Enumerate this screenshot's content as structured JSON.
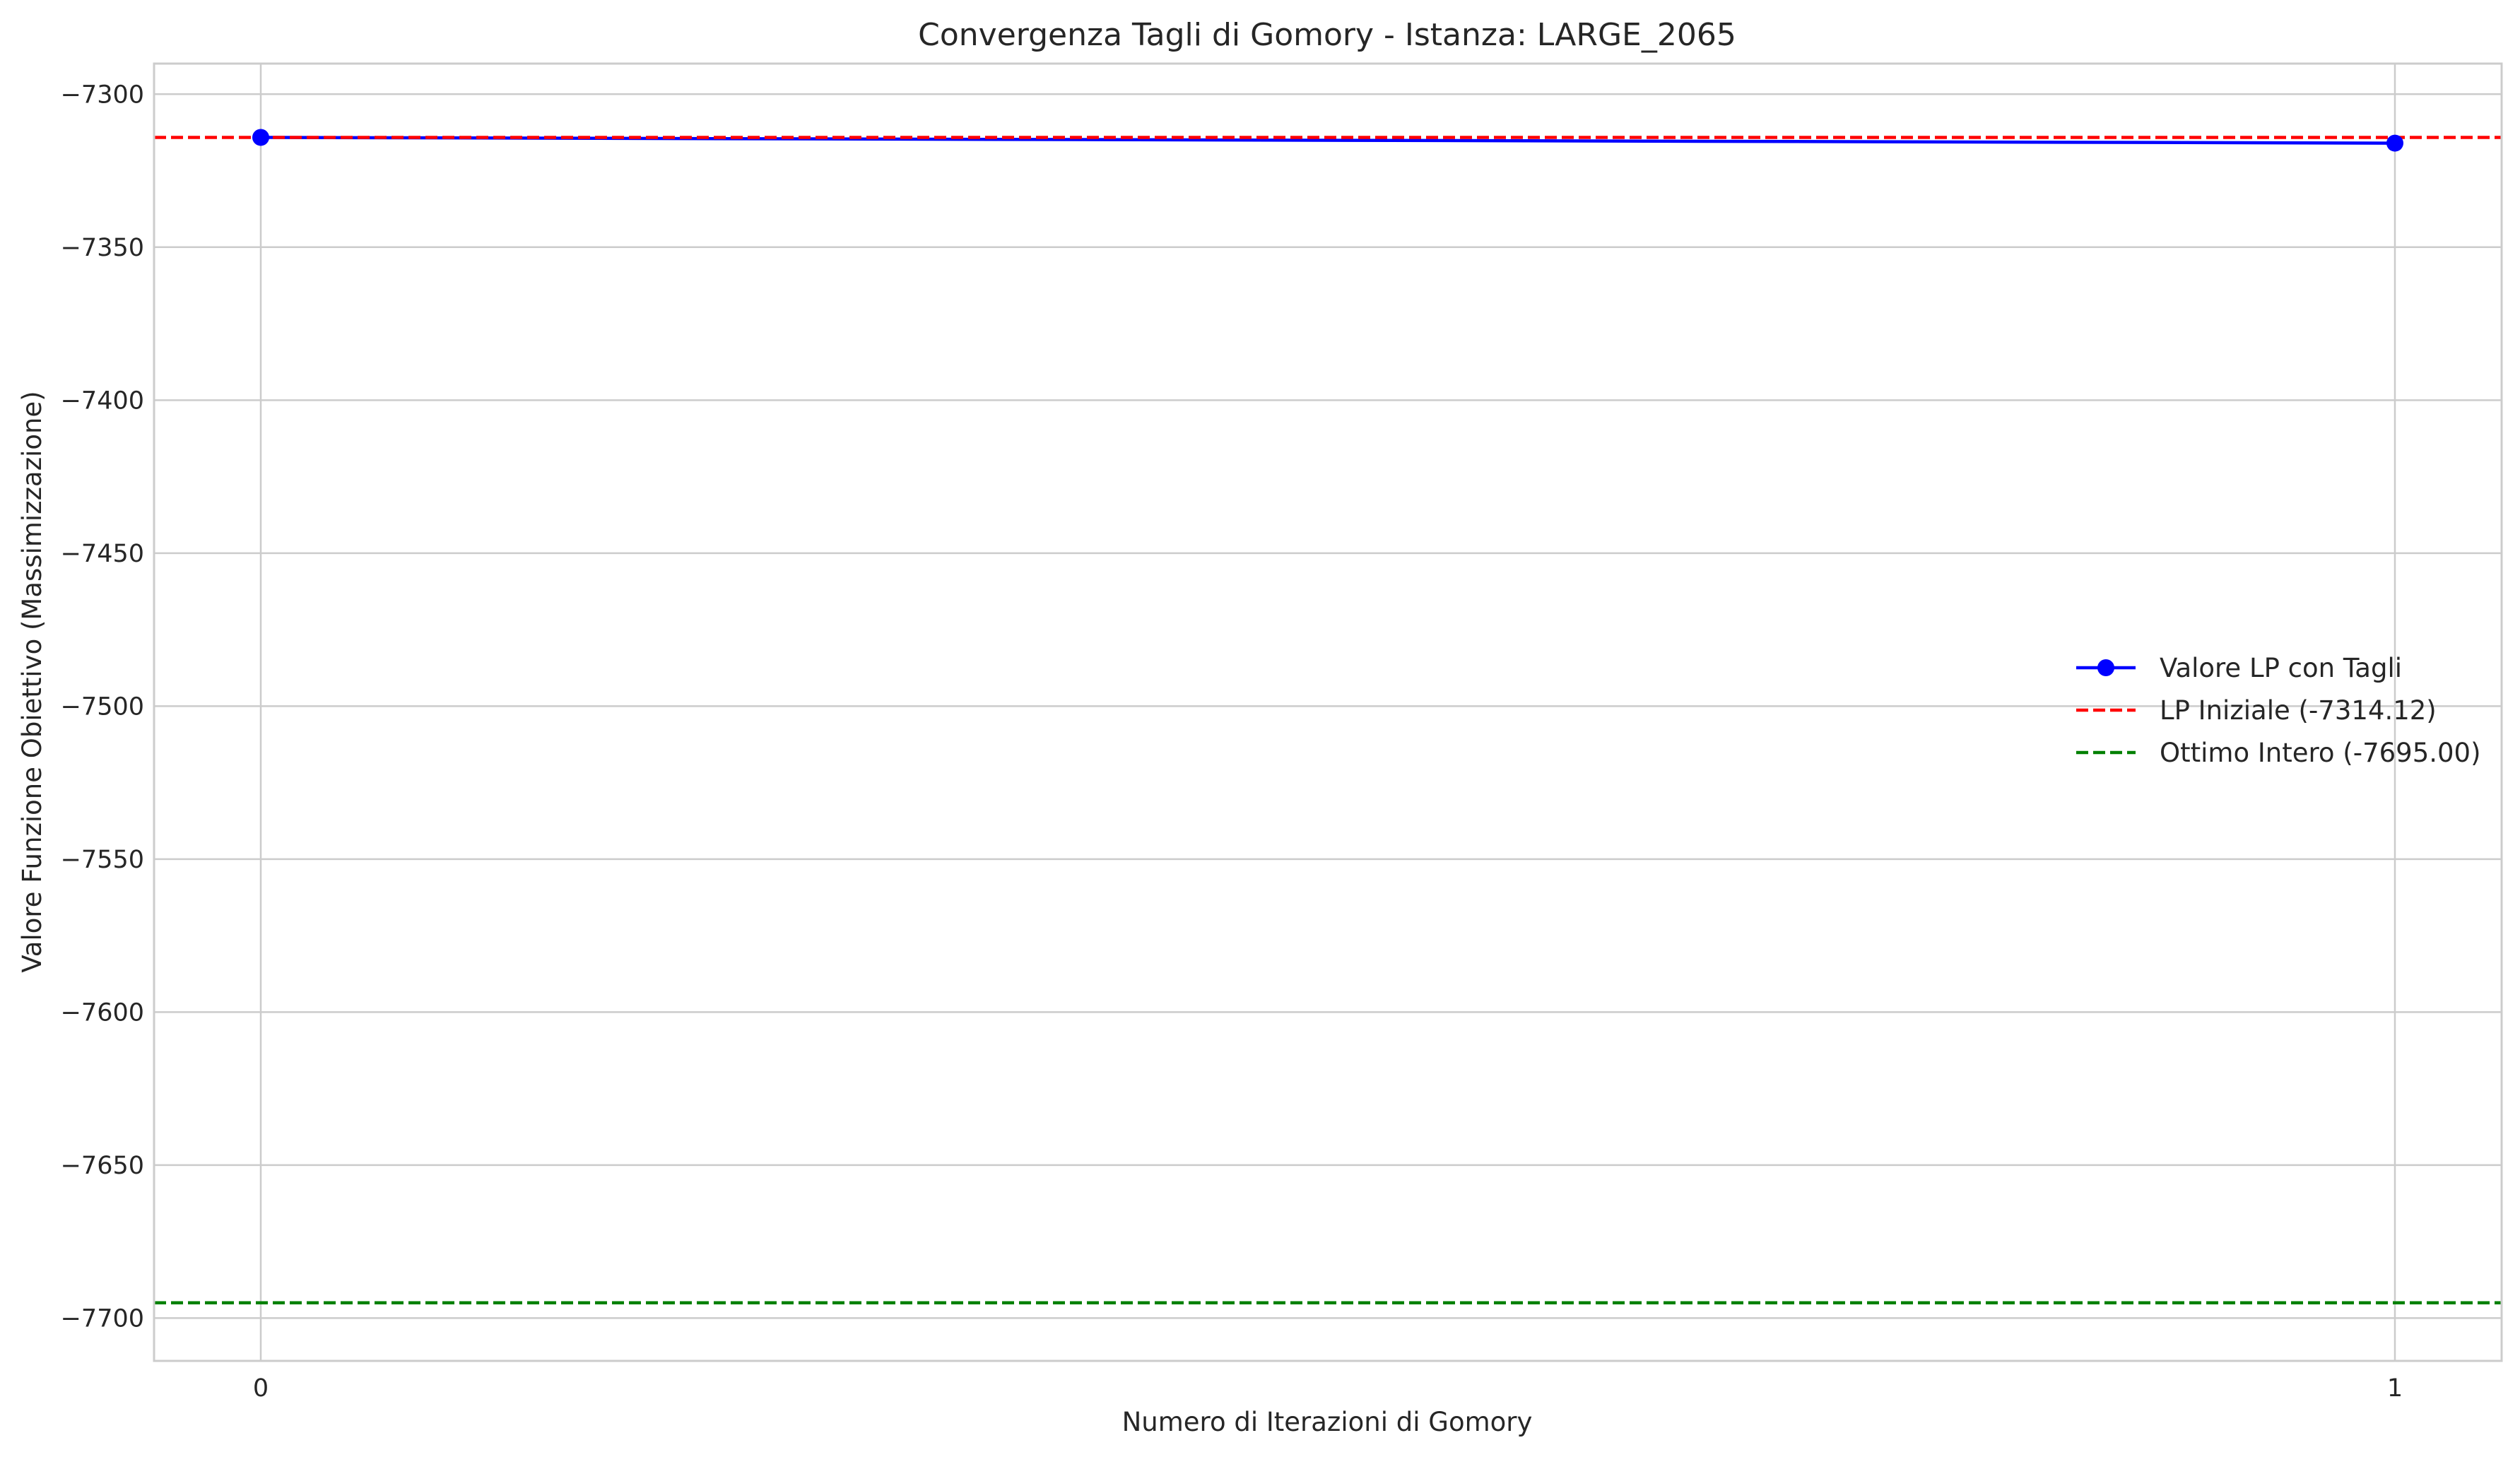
{
  "chart_data": {
    "type": "line",
    "title": "Convergenza Tagli di Gomory - Istanza: LARGE_2065",
    "xlabel": "Numero di Iterazioni di Gomory",
    "ylabel": "Valore Funzione Obiettivo (Massimizzazione)",
    "xlim": [
      -0.05,
      1.05
    ],
    "ylim": [
      -7714,
      -7290
    ],
    "x_ticks": [
      0,
      1
    ],
    "x_tick_labels": [
      "0",
      "1"
    ],
    "y_ticks": [
      -7300,
      -7350,
      -7400,
      -7450,
      -7500,
      -7550,
      -7600,
      -7650,
      -7700
    ],
    "y_tick_labels": [
      "−7300",
      "−7350",
      "−7400",
      "−7450",
      "−7500",
      "−7550",
      "−7600",
      "−7650",
      "−7700"
    ],
    "grid": true,
    "legend_position": "center-right",
    "series": [
      {
        "name": "Valore LP con Tagli",
        "style": "solid-marker",
        "color": "#0000ff",
        "x": [
          0,
          1
        ],
        "y": [
          -7314.12,
          -7316.0
        ]
      }
    ],
    "reference_lines": [
      {
        "name": "LP Iniziale (-7314.12)",
        "value": -7314.12,
        "style": "dashed",
        "color": "#ff0000"
      },
      {
        "name": "Ottimo Intero (-7695.00)",
        "value": -7695.0,
        "style": "dashed",
        "color": "#008000"
      }
    ],
    "colors": {
      "grid": "#cccccc",
      "spine": "#cccccc",
      "text": "#262626"
    }
  }
}
